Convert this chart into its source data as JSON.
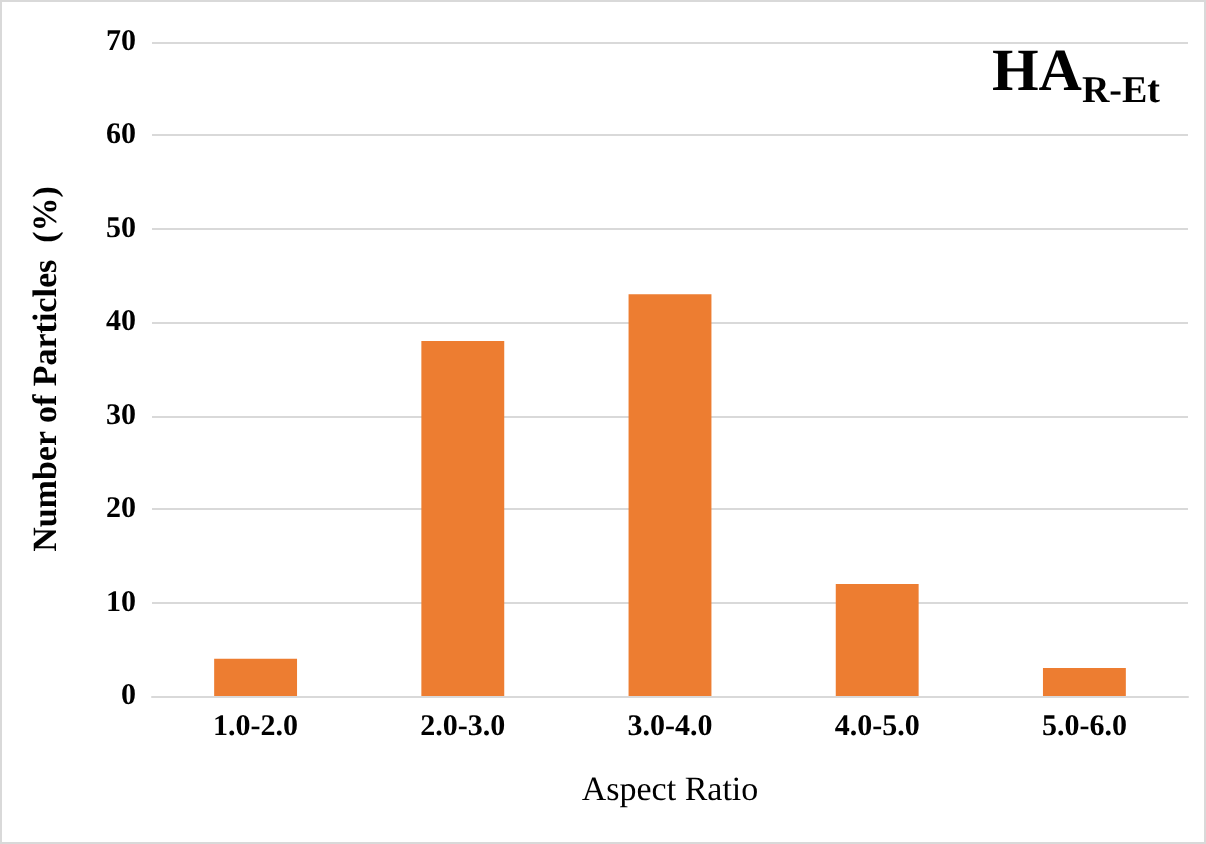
{
  "chart_data": {
    "type": "bar",
    "xlabel": "Aspect Ratio",
    "ylabel": "Number of Particles  (%)",
    "categories": [
      "1.0-2.0",
      "2.0-3.0",
      "3.0-4.0",
      "4.0-5.0",
      "5.0-6.0"
    ],
    "values": [
      4,
      38,
      43,
      12,
      3
    ],
    "color": "#ed7d31",
    "ylim": [
      0,
      70
    ],
    "yticks": [
      0,
      10,
      20,
      30,
      40,
      50,
      60,
      70
    ],
    "grid": "y",
    "annotations": [
      "HA$_{R-Et}$"
    ]
  }
}
